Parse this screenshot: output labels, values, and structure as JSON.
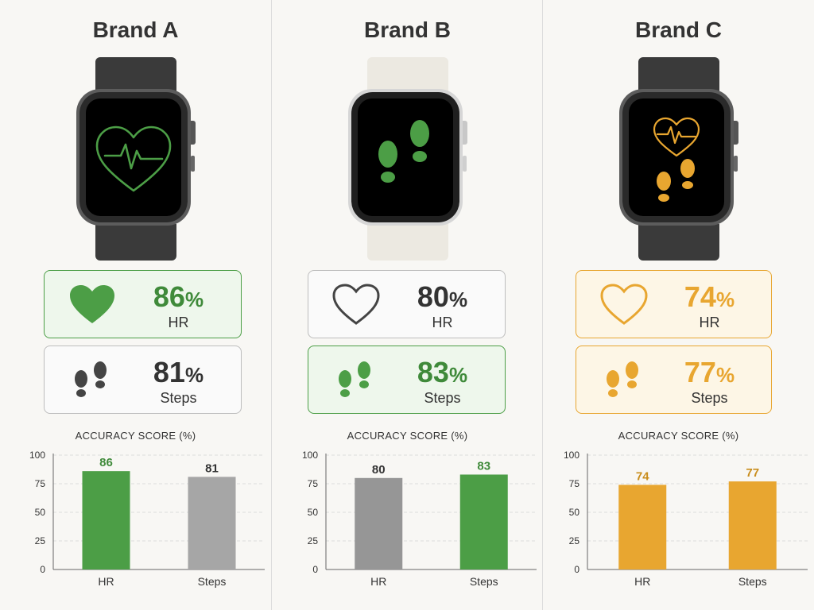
{
  "colors": {
    "green": "#4c9e46",
    "green_light": "#eef7ec",
    "gray": "#a6a6a6",
    "gray_dark": "#444444",
    "amber": "#e8a630",
    "amber_light": "#fdf6e6"
  },
  "brands": [
    {
      "name": "Brand A",
      "band_color": "#3a3a3a",
      "screen_icon": "heart-pulse-icon",
      "hr": {
        "value": "86",
        "unit": "%",
        "label": "HR",
        "icon": "heart-filled-icon",
        "highlight": "green"
      },
      "steps": {
        "value": "81",
        "unit": "%",
        "label": "Steps",
        "icon": "footprints-icon",
        "highlight": "none"
      }
    },
    {
      "name": "Brand B",
      "band_color": "#ece9e1",
      "screen_icon": "footprints-icon",
      "hr": {
        "value": "80",
        "unit": "%",
        "label": "HR",
        "icon": "heart-outline-icon",
        "highlight": "none"
      },
      "steps": {
        "value": "83",
        "unit": "%",
        "label": "Steps",
        "icon": "footprints-icon",
        "highlight": "green"
      }
    },
    {
      "name": "Brand C",
      "band_color": "#3a3a3a",
      "screen_icon": "heart-pulse-footprints-icon",
      "hr": {
        "value": "74",
        "unit": "%",
        "label": "HR",
        "icon": "heart-outline-icon",
        "highlight": "amber"
      },
      "steps": {
        "value": "77",
        "unit": "%",
        "label": "Steps",
        "icon": "footprints-icon",
        "highlight": "amber"
      }
    }
  ],
  "chart_data": [
    {
      "type": "bar",
      "title": "ACCURACY SCORE (%)",
      "categories": [
        "HR",
        "Steps"
      ],
      "values": [
        86,
        81
      ],
      "data_labels": [
        "86",
        "81"
      ],
      "bar_colors": [
        "#4c9e46",
        "#a6a6a6"
      ],
      "label_colors": [
        "#3f8a3a",
        "#333333"
      ],
      "ylim": [
        0,
        100
      ],
      "yticks": [
        "0",
        "25",
        "50",
        "75",
        "100"
      ],
      "grid": true
    },
    {
      "type": "bar",
      "title": "ACCURACY SCORE (%)",
      "categories": [
        "HR",
        "Steps"
      ],
      "values": [
        80,
        83
      ],
      "data_labels": [
        "80",
        "83"
      ],
      "bar_colors": [
        "#969696",
        "#4c9e46"
      ],
      "label_colors": [
        "#333333",
        "#3f8a3a"
      ],
      "ylim": [
        0,
        100
      ],
      "yticks": [
        "0",
        "25",
        "50",
        "75",
        "100"
      ],
      "grid": true
    },
    {
      "type": "bar",
      "title": "ACCURACY SCORE (%)",
      "categories": [
        "HR",
        "Steps"
      ],
      "values": [
        74,
        77
      ],
      "data_labels": [
        "74",
        "77"
      ],
      "bar_colors": [
        "#e8a630",
        "#e8a630"
      ],
      "label_colors": [
        "#c98d1c",
        "#c98d1c"
      ],
      "ylim": [
        0,
        100
      ],
      "yticks": [
        "0",
        "25",
        "50",
        "75",
        "100"
      ],
      "grid": true
    }
  ]
}
